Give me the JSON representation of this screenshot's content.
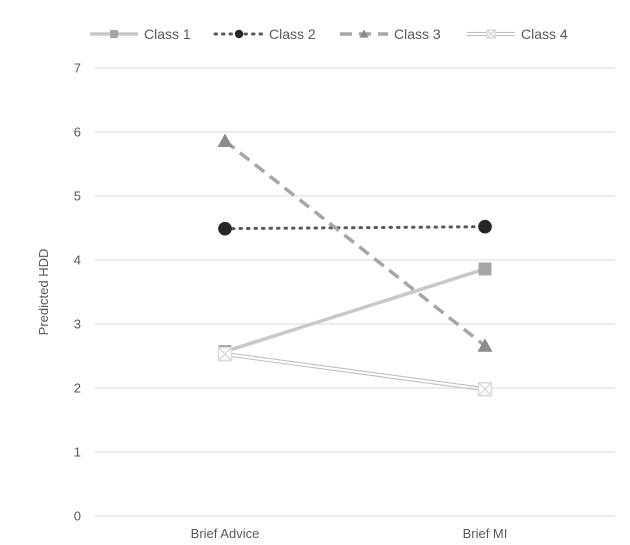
{
  "chart_data": {
    "type": "line",
    "title": "",
    "xlabel": "",
    "ylabel": "Predicted HDD",
    "categories": [
      "Brief Advice",
      "Brief MI"
    ],
    "ylim": [
      0,
      7
    ],
    "yticks": [
      0,
      1,
      2,
      3,
      4,
      5,
      6,
      7
    ],
    "grid": true,
    "legend_position": "top",
    "series": [
      {
        "name": "Class 1",
        "values": [
          2.57,
          3.86
        ],
        "color": "#c8c8c8",
        "line_style": "solid",
        "marker": "square",
        "marker_color": "#a6a6a6"
      },
      {
        "name": "Class 2",
        "values": [
          4.49,
          4.52
        ],
        "color": "#595959",
        "line_style": "dotted",
        "marker": "circle",
        "marker_color": "#262626"
      },
      {
        "name": "Class 3",
        "values": [
          5.86,
          2.66
        ],
        "color": "#a6a6a6",
        "line_style": "dashed",
        "marker": "triangle",
        "marker_color": "#8c8c8c"
      },
      {
        "name": "Class 4",
        "values": [
          2.53,
          1.98
        ],
        "color": "#bfbfbf",
        "line_style": "double",
        "marker": "x-square",
        "marker_color": "#d9d9d9"
      }
    ]
  }
}
